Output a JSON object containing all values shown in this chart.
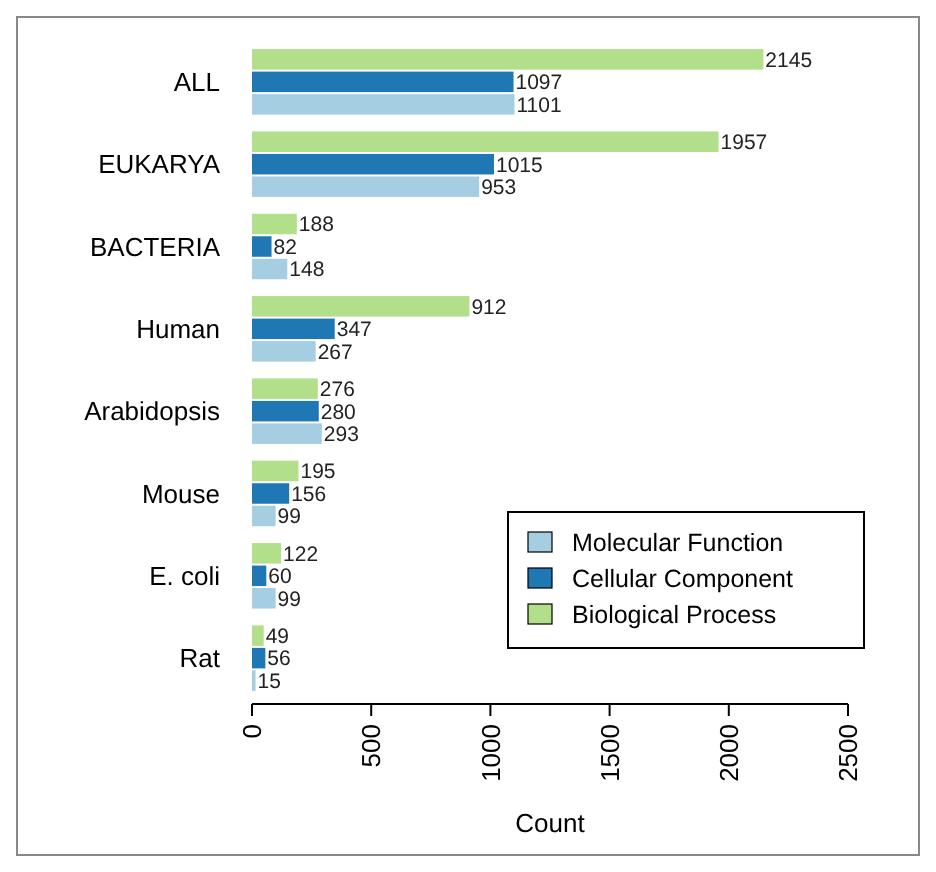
{
  "chart_data": {
    "type": "bar",
    "orientation": "horizontal",
    "categories": [
      "ALL",
      "EUKARYA",
      "BACTERIA",
      "Human",
      "Arabidopsis",
      "Mouse",
      "E. coli",
      "Rat"
    ],
    "series": [
      {
        "name": "Molecular Function",
        "color": "#a6cee3",
        "values": [
          1101,
          953,
          148,
          267,
          293,
          99,
          99,
          15
        ]
      },
      {
        "name": "Cellular Component",
        "color": "#1f78b4",
        "values": [
          1097,
          1015,
          82,
          347,
          280,
          156,
          60,
          56
        ]
      },
      {
        "name": "Biological Process",
        "color": "#b2df8a",
        "values": [
          2145,
          1957,
          188,
          912,
          276,
          195,
          122,
          49
        ]
      }
    ],
    "xlim": [
      0,
      2500
    ],
    "xticks": [
      0,
      500,
      1000,
      1500,
      2000,
      2500
    ],
    "xlabel": "Count",
    "data_labels": true,
    "legend": "bottom right",
    "grid": false
  }
}
